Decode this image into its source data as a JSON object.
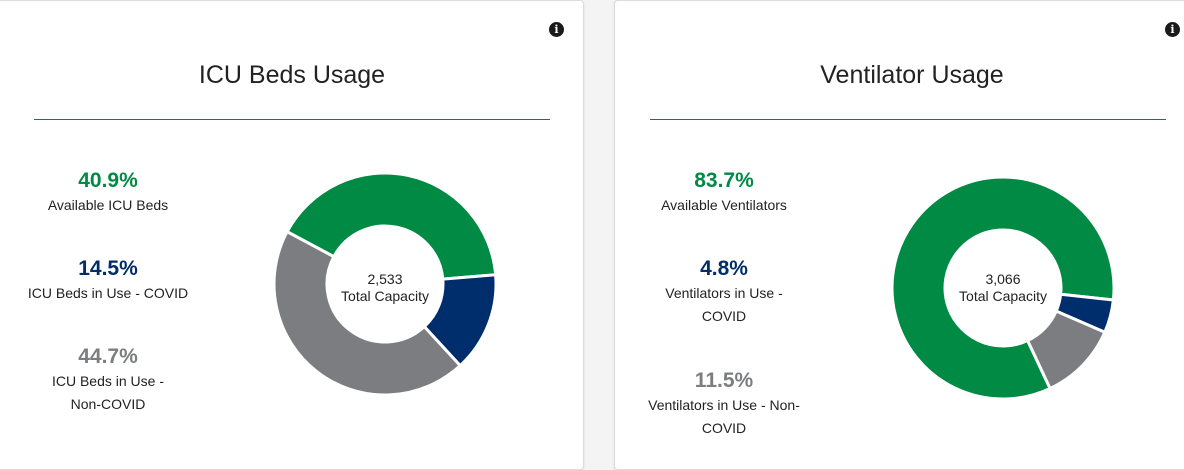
{
  "colors": {
    "available": "#008a44",
    "covid": "#002d6b",
    "non_covid": "#7b7d80",
    "divider": "#3b5a7c"
  },
  "icu": {
    "title": "ICU Beds Usage",
    "info_icon": "info-icon",
    "stats": [
      {
        "pct": "40.9%",
        "label": "Available ICU Beds"
      },
      {
        "pct": "14.5%",
        "label": "ICU Beds in Use - COVID"
      },
      {
        "pct": "44.7%",
        "label": "ICU Beds in Use - Non-COVID"
      }
    ],
    "total": "2,533",
    "total_label": "Total Capacity",
    "chart_data": {
      "type": "pie",
      "labels": [
        "Available ICU Beds",
        "ICU Beds in Use - COVID",
        "ICU Beds in Use - Non-COVID"
      ],
      "values": [
        40.9,
        14.5,
        44.7
      ]
    }
  },
  "vent": {
    "title": "Ventilator Usage",
    "info_icon": "info-icon",
    "stats": [
      {
        "pct": "83.7%",
        "label": "Available Ventilators"
      },
      {
        "pct": "4.8%",
        "label": "Ventilators in Use - COVID"
      },
      {
        "pct": "11.5%",
        "label": "Ventilators in Use - Non-COVID"
      }
    ],
    "total": "3,066",
    "total_label": "Total Capacity",
    "chart_data": {
      "type": "pie",
      "labels": [
        "Available Ventilators",
        "Ventilators in Use - COVID",
        "Ventilators in Use - Non-COVID"
      ],
      "values": [
        83.7,
        4.8,
        11.5
      ]
    }
  }
}
